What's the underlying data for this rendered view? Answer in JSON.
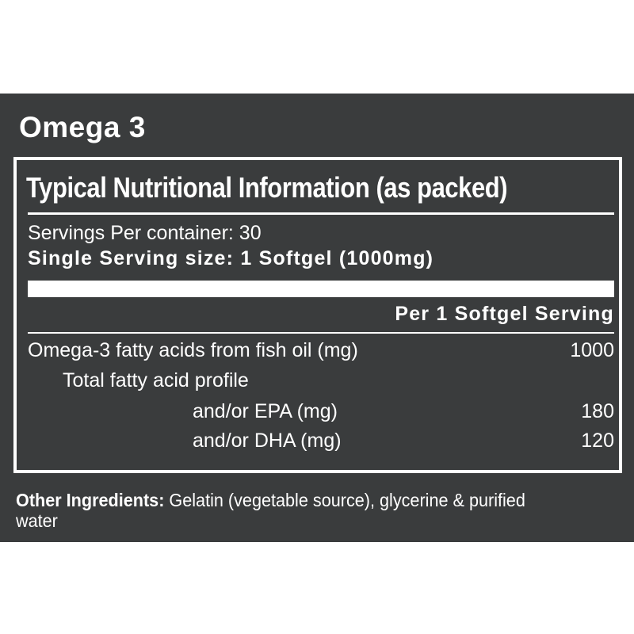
{
  "product_title": "Omega 3",
  "panel": {
    "heading": "Typical Nutritional Information (as packed)",
    "servings_per_container": "Servings Per container: 30",
    "serving_size": "Single Serving size: 1 Softgel (1000mg)",
    "column_header": "Per 1 Softgel Serving",
    "rows": [
      {
        "label": "Omega-3 fatty acids from fish oil (mg)",
        "value": "1000"
      },
      {
        "label": "Total fatty acid profile",
        "value": ""
      },
      {
        "label": "and/or EPA (mg)",
        "value": "180"
      },
      {
        "label": "and/or DHA (mg)",
        "value": "120"
      }
    ]
  },
  "other_ingredients": {
    "label": "Other Ingredients:",
    "text": " Gelatin (vegetable source), glycerine & purified water"
  },
  "colors": {
    "background": "#3a3c3d",
    "text": "#ffffff"
  }
}
